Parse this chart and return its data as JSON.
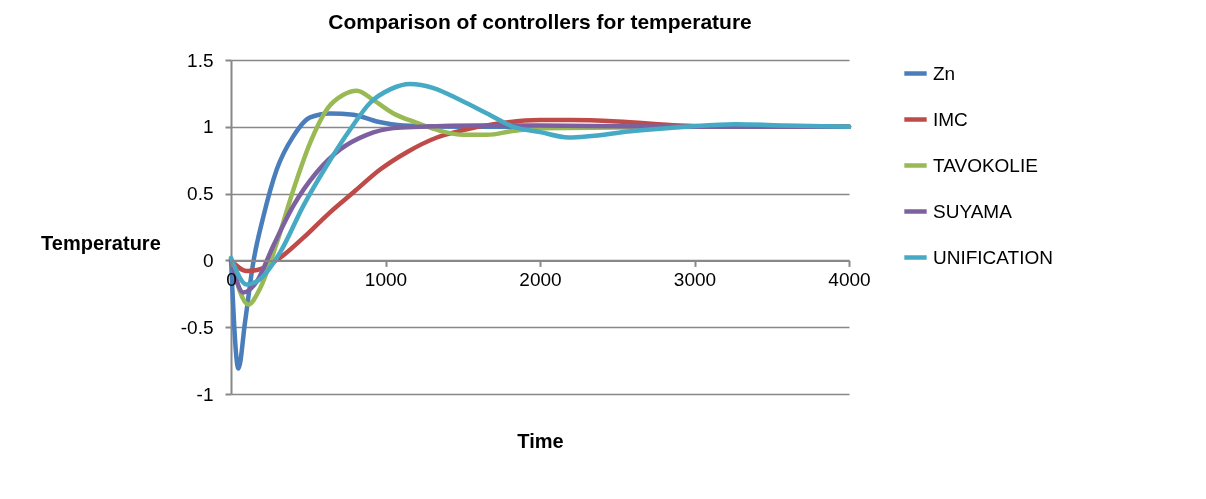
{
  "chart_data": {
    "type": "line",
    "title": "Comparison of controllers for temperature",
    "xlabel": "Time",
    "ylabel": "Temperature",
    "xlim": [
      0,
      4000
    ],
    "xticks": [
      0,
      1000,
      2000,
      3000,
      4000
    ],
    "ylim": [
      -1,
      1.5
    ],
    "yticks": [
      -1,
      -0.5,
      0,
      0.5,
      1,
      1.5
    ],
    "grid": "y",
    "legend": "right",
    "marker": "none",
    "line_style": "solid",
    "series": [
      {
        "name": "Zn",
        "color": "#4a7ebb",
        "x": [
          0,
          48,
          91,
          145,
          210,
          296,
          404,
          512,
          641,
          793,
          944,
          1117,
          1500,
          2000,
          3000,
          4000
        ],
        "values": [
          0.01,
          -0.81,
          -0.46,
          -0.01,
          0.33,
          0.68,
          0.93,
          1.07,
          1.1,
          1.09,
          1.04,
          1.01,
          1.0,
          1.0,
          1.0,
          1.0
        ]
      },
      {
        "name": "IMC",
        "color": "#be4b48",
        "x": [
          0,
          102,
          188,
          318,
          469,
          641,
          793,
          965,
          1138,
          1333,
          1484,
          1700,
          2000,
          2200,
          2500,
          2900,
          3200,
          4000
        ],
        "values": [
          0,
          -0.08,
          -0.065,
          0.02,
          0.17,
          0.36,
          0.51,
          0.68,
          0.81,
          0.92,
          0.97,
          1.02,
          1.05,
          1.05,
          1.04,
          1.01,
          1.0,
          1.0
        ]
      },
      {
        "name": "TAVOKOLIE",
        "color": "#98b954",
        "x": [
          0,
          112,
          188,
          296,
          404,
          512,
          620,
          728,
          814,
          922,
          1052,
          1203,
          1354,
          1505,
          1657,
          1829,
          2002,
          3000,
          4000
        ],
        "values": [
          0,
          -0.33,
          -0.21,
          0.13,
          0.53,
          0.88,
          1.13,
          1.24,
          1.27,
          1.2,
          1.1,
          1.03,
          0.97,
          0.94,
          0.94,
          0.97,
          0.99,
          1.0,
          1.0
        ]
      },
      {
        "name": "SUYAMA",
        "color": "#7d60a0",
        "x": [
          0,
          80,
          166,
          274,
          404,
          555,
          706,
          879,
          1052,
          1225,
          1600,
          2000,
          3000,
          4000
        ],
        "values": [
          0,
          -0.24,
          -0.16,
          0.11,
          0.41,
          0.66,
          0.83,
          0.94,
          0.99,
          1.0,
          1.01,
          1.01,
          1.0,
          1.0
        ]
      },
      {
        "name": "UNIFICATION",
        "color": "#46aac5",
        "x": [
          0,
          102,
          188,
          318,
          469,
          620,
          771,
          901,
          1030,
          1160,
          1311,
          1484,
          1657,
          1829,
          2002,
          2184,
          2618,
          2942,
          3266,
          3590,
          4000
        ],
        "values": [
          0.02,
          -0.18,
          -0.14,
          0.06,
          0.41,
          0.71,
          0.98,
          1.18,
          1.28,
          1.32,
          1.29,
          1.2,
          1.1,
          1.0,
          0.96,
          0.92,
          0.97,
          1.0,
          1.02,
          1.01,
          1.0
        ]
      }
    ]
  }
}
